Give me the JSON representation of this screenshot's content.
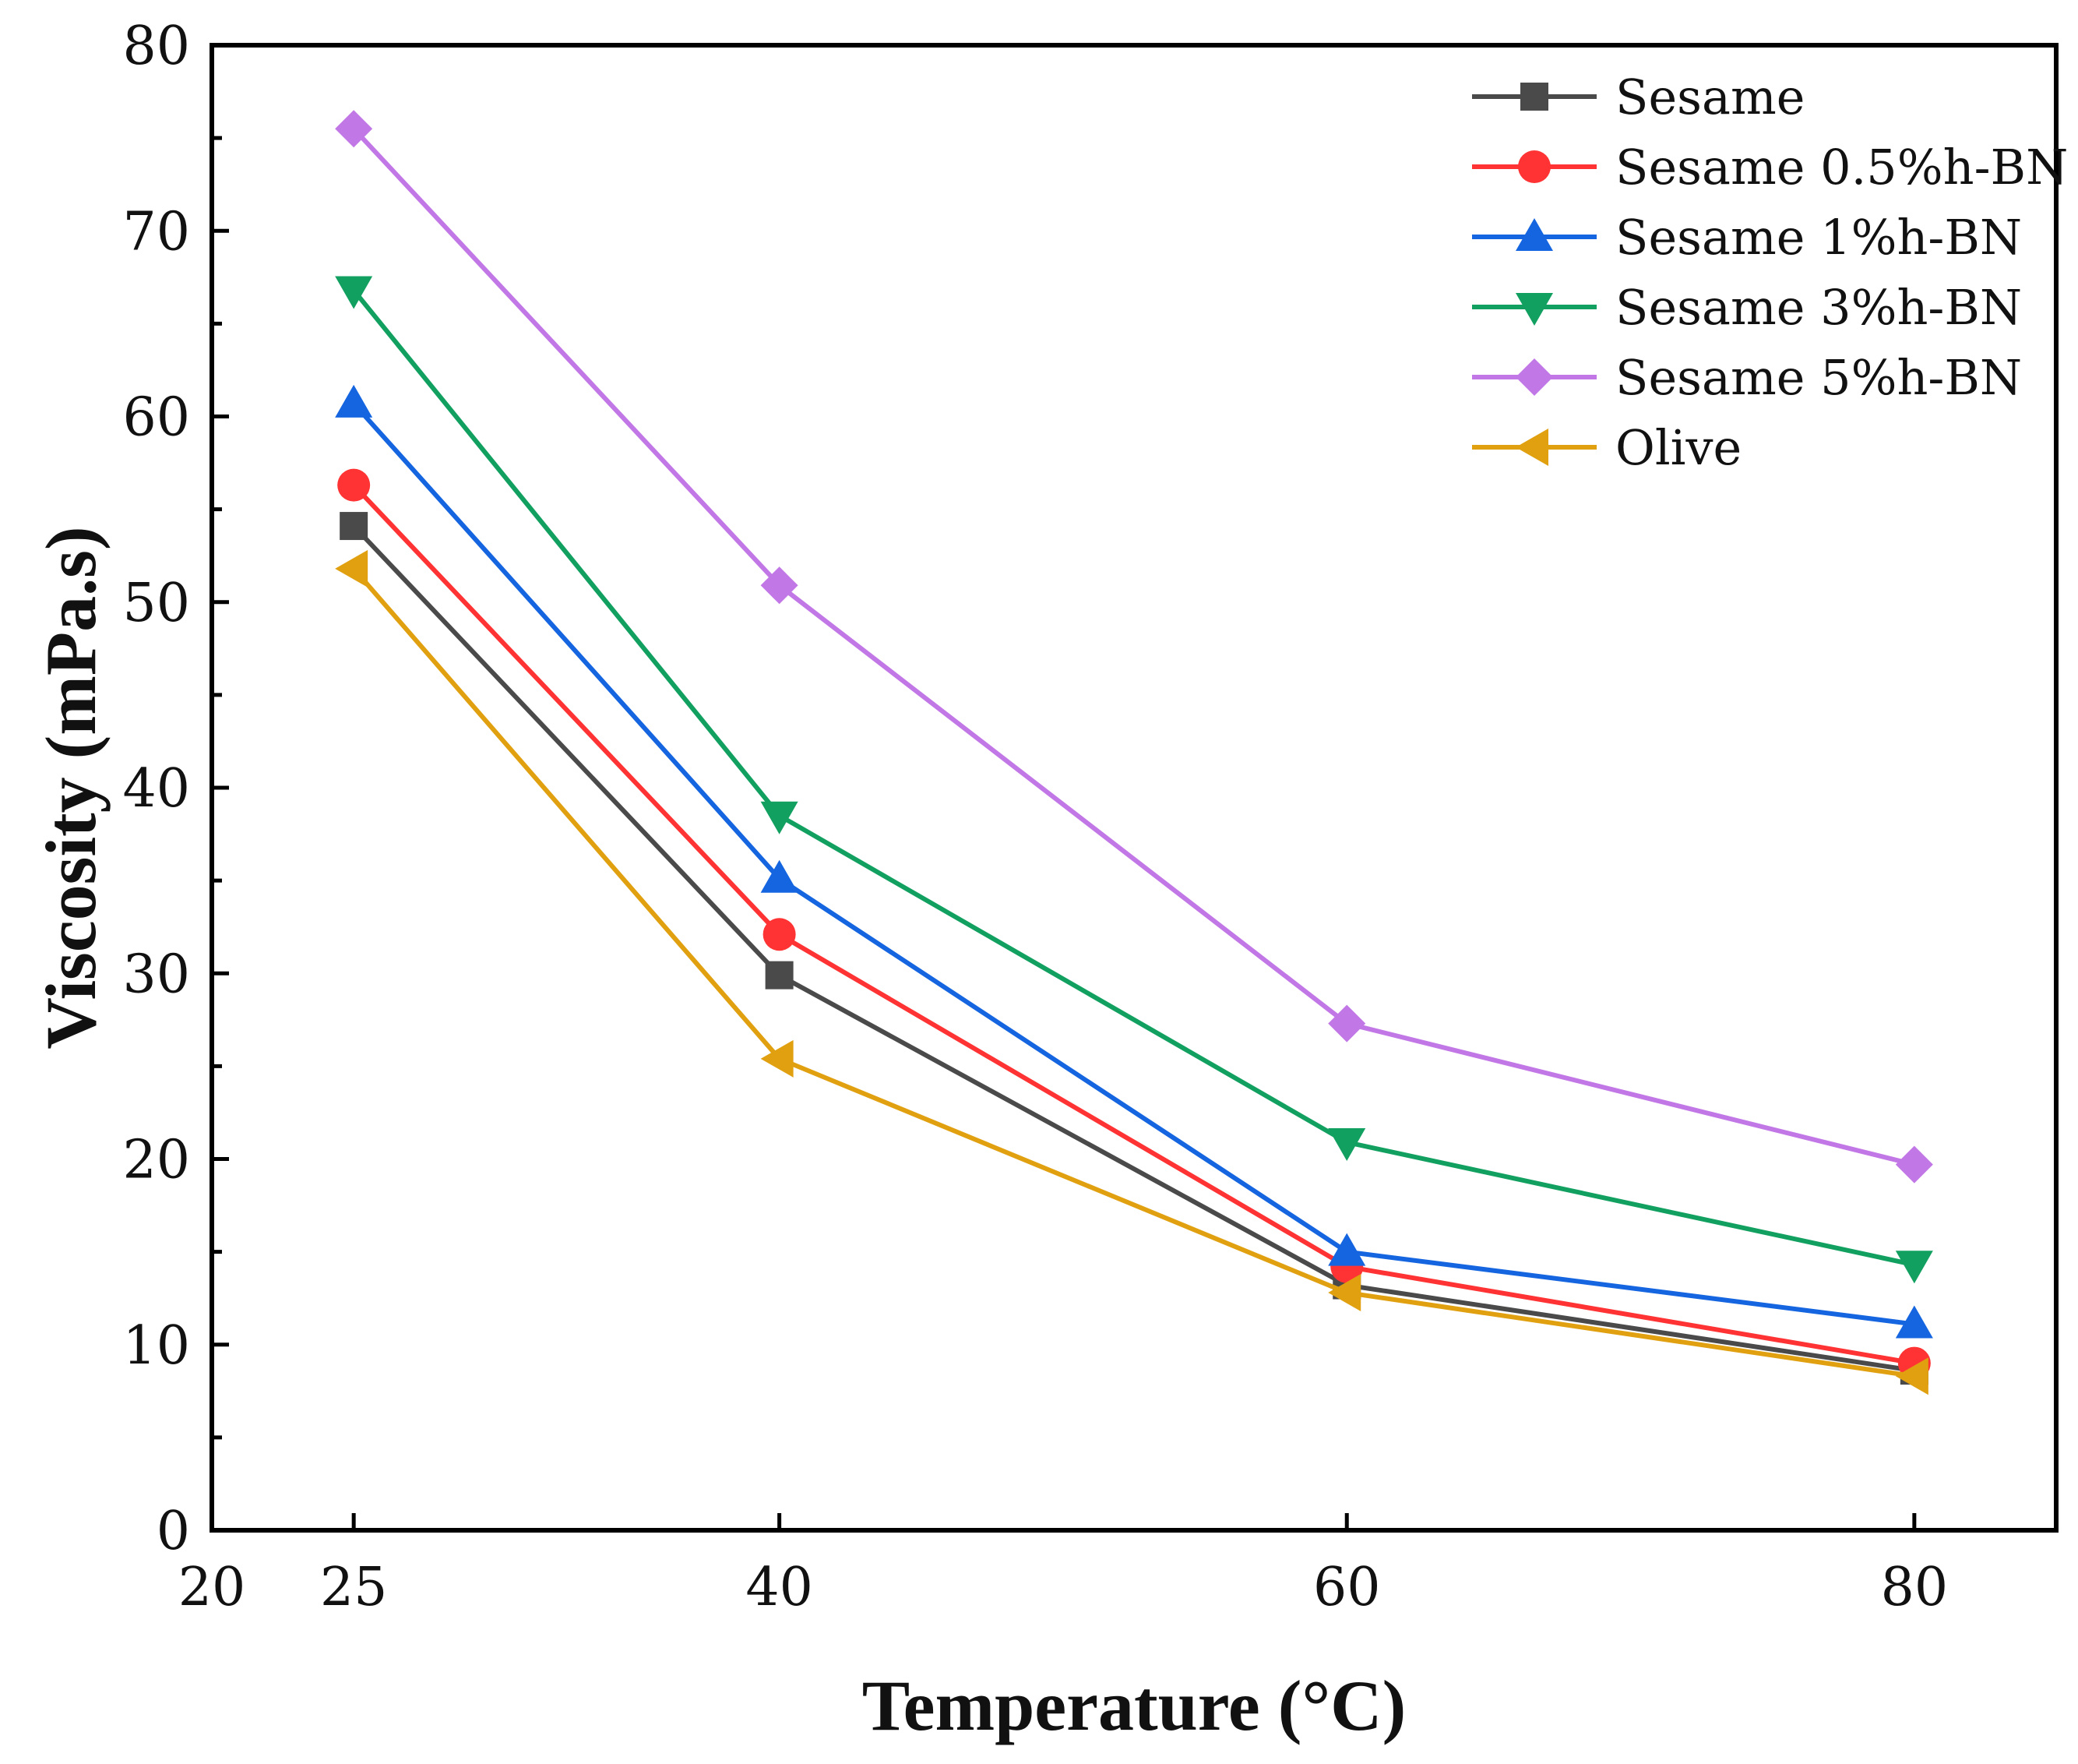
{
  "chart_data": {
    "type": "line",
    "xlabel": "Temperature (°C)",
    "ylabel": "Viscosity (mPa.s)",
    "xlim": [
      20,
      85
    ],
    "ylim": [
      0,
      80
    ],
    "x": [
      25,
      40,
      60,
      80
    ],
    "x_ticks": [
      20,
      25,
      40,
      60,
      80
    ],
    "x_tick_labels": [
      "20",
      "25",
      "40",
      "60",
      "80"
    ],
    "y_ticks": [
      0,
      10,
      20,
      30,
      40,
      50,
      60,
      70,
      80
    ],
    "y_tick_labels": [
      "0",
      "10",
      "20",
      "30",
      "40",
      "50",
      "60",
      "70",
      "80"
    ],
    "legend_position": "top-right",
    "series": [
      {
        "name": "Sesame",
        "marker": "square",
        "color": "#4a4a4a",
        "values": [
          54.1,
          29.9,
          13.2,
          8.6
        ]
      },
      {
        "name": "Sesame 0.5%h-BN",
        "marker": "circle",
        "color": "#ff3333",
        "values": [
          56.3,
          32.1,
          14.2,
          9.0
        ]
      },
      {
        "name": "Sesame 1%h-BN",
        "marker": "triangle-up",
        "color": "#1565e0",
        "values": [
          60.7,
          35.1,
          15.0,
          11.1
        ]
      },
      {
        "name": "Sesame 3%h-BN",
        "marker": "triangle-down",
        "color": "#12a060",
        "values": [
          66.8,
          38.5,
          20.9,
          14.3
        ]
      },
      {
        "name": "Sesame 5%h-BN",
        "marker": "diamond",
        "color": "#c277e6",
        "values": [
          75.5,
          50.9,
          27.3,
          19.7
        ]
      },
      {
        "name": "Olive",
        "marker": "triangle-left",
        "color": "#e0a010",
        "values": [
          51.8,
          25.4,
          12.8,
          8.3
        ]
      }
    ]
  }
}
